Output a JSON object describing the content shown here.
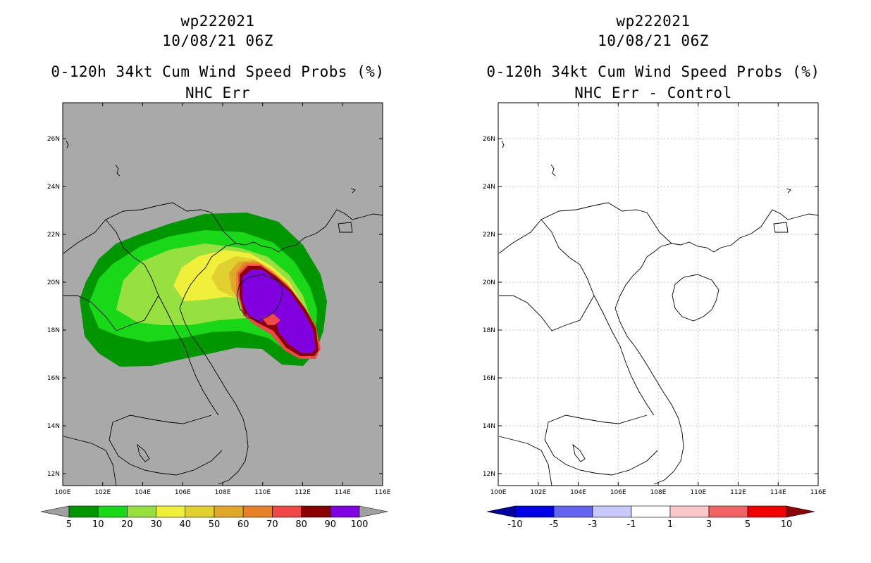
{
  "left_panel": {
    "storm_id": "wp222021",
    "datetime": "10/08/21 06Z",
    "product": "0-120h 34kt Cum Wind Speed Probs (%)",
    "subtitle": "NHC Err",
    "background_color": "#a9a9a9",
    "colorbar": {
      "labels": [
        "5",
        "10",
        "20",
        "30",
        "40",
        "50",
        "60",
        "70",
        "80",
        "90",
        "100"
      ],
      "colors": [
        "#009600",
        "#18d818",
        "#96e040",
        "#f0f03a",
        "#e0d030",
        "#e0a828",
        "#e88028",
        "#f04848",
        "#880000",
        "#8000e0"
      ],
      "left_arrow": "#a0a0a0",
      "right_arrow": "#a0a0a0"
    }
  },
  "right_panel": {
    "storm_id": "wp222021",
    "datetime": "10/08/21 06Z",
    "product": "0-120h 34kt Cum Wind Speed Probs (%)",
    "subtitle": "NHC Err - Control",
    "background_color": "#ffffff",
    "colorbar": {
      "labels": [
        "-10",
        "-5",
        "-3",
        "-1",
        "1",
        "3",
        "5",
        "10"
      ],
      "colors": [
        "#0000e6",
        "#6464f0",
        "#c8c8fa",
        "#ffffff",
        "#fac8c8",
        "#f06464",
        "#f00000"
      ],
      "left_arrow": "#0000a0",
      "right_arrow": "#8c0000"
    }
  },
  "axes": {
    "lon_ticks": [
      "100E",
      "102E",
      "104E",
      "106E",
      "108E",
      "110E",
      "112E",
      "114E",
      "116E"
    ],
    "lat_ticks": [
      "12N",
      "14N",
      "16N",
      "18N",
      "20N",
      "22N",
      "24N",
      "26N"
    ],
    "lon_range": [
      100,
      116
    ],
    "lat_range": [
      11.5,
      27.5
    ]
  }
}
